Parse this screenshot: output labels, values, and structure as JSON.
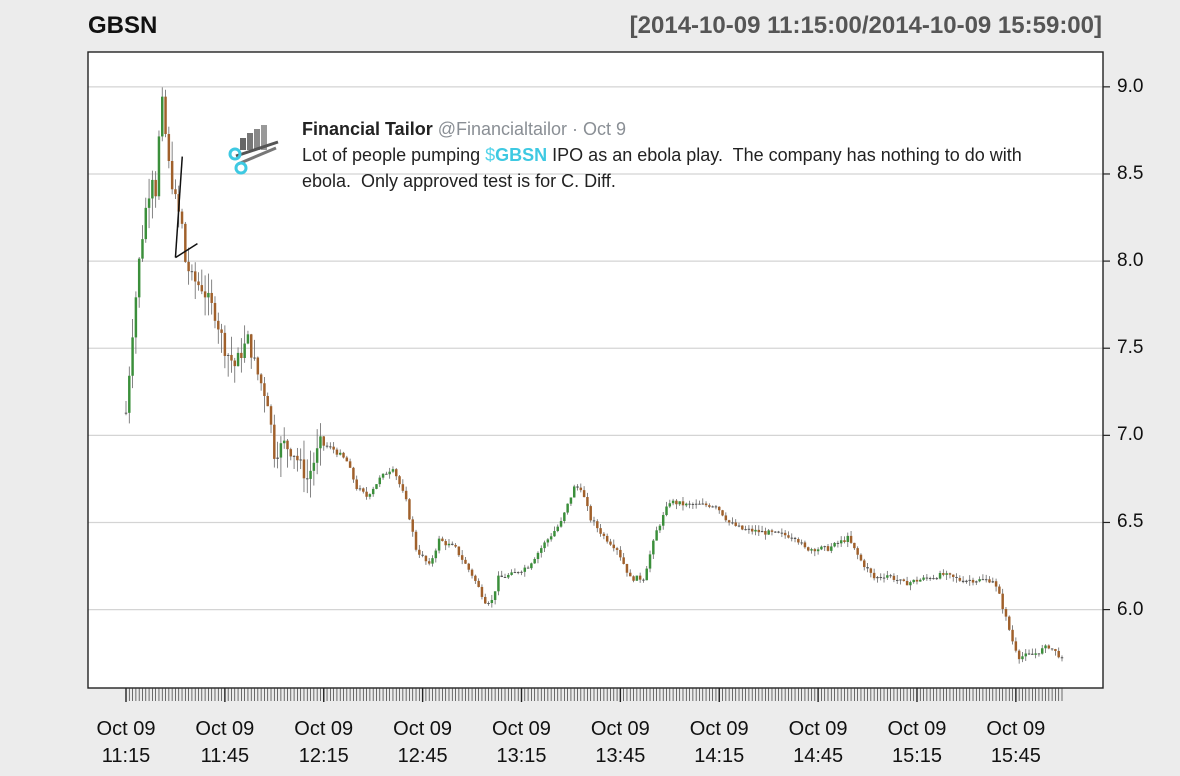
{
  "header": {
    "symbol": "GBSN",
    "date_range": "[2014-10-09 11:15:00/2014-10-09 15:59:00]"
  },
  "tweet": {
    "author": "Financial Tailor",
    "handle": "@Financialtailor",
    "separator": " · ",
    "date": "Oct 9",
    "text_before": "Lot of people pumping ",
    "cashtag_symbol": "$",
    "cashtag_ticker": "GBSN",
    "text_after": " IPO as an ebola play.  The company has nothing to do with ebola.  Only approved test is for C. Diff.",
    "logo_icon": "chart-scissors-icon"
  },
  "colors": {
    "up": "#3b8f3b",
    "down": "#a0602b",
    "flat": "#555555",
    "cashtag": "#3ec9e2"
  },
  "chart_data": {
    "type": "candlestick",
    "title": "GBSN",
    "subtitle": "[2014-10-09 11:15:00/2014-10-09 15:59:00]",
    "xlabel": "",
    "ylabel": "",
    "ylim": [
      5.55,
      9.2
    ],
    "y_ticks": [
      "9.0",
      "8.5",
      "8.0",
      "7.5",
      "7.0",
      "6.5",
      "6.0"
    ],
    "x_start": "11:15",
    "x_end": "15:59",
    "x_ticks": [
      {
        "date": "Oct 09",
        "time": "11:15"
      },
      {
        "date": "Oct 09",
        "time": "11:45"
      },
      {
        "date": "Oct 09",
        "time": "12:15"
      },
      {
        "date": "Oct 09",
        "time": "12:45"
      },
      {
        "date": "Oct 09",
        "time": "13:15"
      },
      {
        "date": "Oct 09",
        "time": "13:45"
      },
      {
        "date": "Oct 09",
        "time": "14:15"
      },
      {
        "date": "Oct 09",
        "time": "14:45"
      },
      {
        "date": "Oct 09",
        "time": "15:15"
      },
      {
        "date": "Oct 09",
        "time": "15:45"
      }
    ],
    "grid": true,
    "keypoints": [
      [
        "11:15",
        7.13
      ],
      [
        "11:17",
        7.6
      ],
      [
        "11:19",
        8.0
      ],
      [
        "11:21",
        8.3
      ],
      [
        "11:23",
        8.5
      ],
      [
        "11:24",
        8.4
      ],
      [
        "11:25",
        8.7
      ],
      [
        "11:26",
        8.9
      ],
      [
        "11:28",
        8.55
      ],
      [
        "11:30",
        8.35
      ],
      [
        "11:32",
        8.2
      ],
      [
        "11:33",
        8.0
      ],
      [
        "11:35",
        7.9
      ],
      [
        "11:38",
        7.85
      ],
      [
        "11:42",
        7.7
      ],
      [
        "11:45",
        7.5
      ],
      [
        "11:48",
        7.4
      ],
      [
        "11:52",
        7.55
      ],
      [
        "11:55",
        7.35
      ],
      [
        "11:58",
        7.2
      ],
      [
        "12:00",
        6.9
      ],
      [
        "12:03",
        6.95
      ],
      [
        "12:06",
        6.9
      ],
      [
        "12:10",
        6.75
      ],
      [
        "12:14",
        6.95
      ],
      [
        "12:18",
        6.92
      ],
      [
        "12:22",
        6.85
      ],
      [
        "12:25",
        6.7
      ],
      [
        "12:28",
        6.65
      ],
      [
        "12:32",
        6.75
      ],
      [
        "12:36",
        6.82
      ],
      [
        "12:40",
        6.62
      ],
      [
        "12:43",
        6.35
      ],
      [
        "12:47",
        6.25
      ],
      [
        "12:50",
        6.4
      ],
      [
        "12:55",
        6.35
      ],
      [
        "13:00",
        6.2
      ],
      [
        "13:04",
        6.05
      ],
      [
        "13:06",
        6.05
      ],
      [
        "13:08",
        6.18
      ],
      [
        "13:12",
        6.2
      ],
      [
        "13:17",
        6.25
      ],
      [
        "13:22",
        6.38
      ],
      [
        "13:27",
        6.5
      ],
      [
        "13:31",
        6.7
      ],
      [
        "13:33",
        6.7
      ],
      [
        "13:36",
        6.52
      ],
      [
        "13:40",
        6.42
      ],
      [
        "13:44",
        6.35
      ],
      [
        "13:48",
        6.18
      ],
      [
        "13:52",
        6.18
      ],
      [
        "13:56",
        6.45
      ],
      [
        "14:00",
        6.62
      ],
      [
        "14:05",
        6.6
      ],
      [
        "14:14",
        6.6
      ],
      [
        "14:18",
        6.5
      ],
      [
        "14:22",
        6.46
      ],
      [
        "14:30",
        6.44
      ],
      [
        "14:38",
        6.42
      ],
      [
        "14:41",
        6.35
      ],
      [
        "14:48",
        6.35
      ],
      [
        "14:54",
        6.41
      ],
      [
        "14:58",
        6.28
      ],
      [
        "15:02",
        6.18
      ],
      [
        "15:06",
        6.2
      ],
      [
        "15:11",
        6.15
      ],
      [
        "15:18",
        6.18
      ],
      [
        "15:23",
        6.2
      ],
      [
        "15:28",
        6.17
      ],
      [
        "15:38",
        6.17
      ],
      [
        "15:40",
        6.08
      ],
      [
        "15:42",
        5.95
      ],
      [
        "15:44",
        5.82
      ],
      [
        "15:46",
        5.73
      ],
      [
        "15:50",
        5.74
      ],
      [
        "15:55",
        5.79
      ],
      [
        "15:58",
        5.74
      ],
      [
        "15:59",
        5.71
      ]
    ],
    "annotations": [
      {
        "type": "arrow",
        "from": [
          "11:26",
          8.6
        ],
        "to": [
          "11:30",
          8.02
        ]
      }
    ]
  }
}
